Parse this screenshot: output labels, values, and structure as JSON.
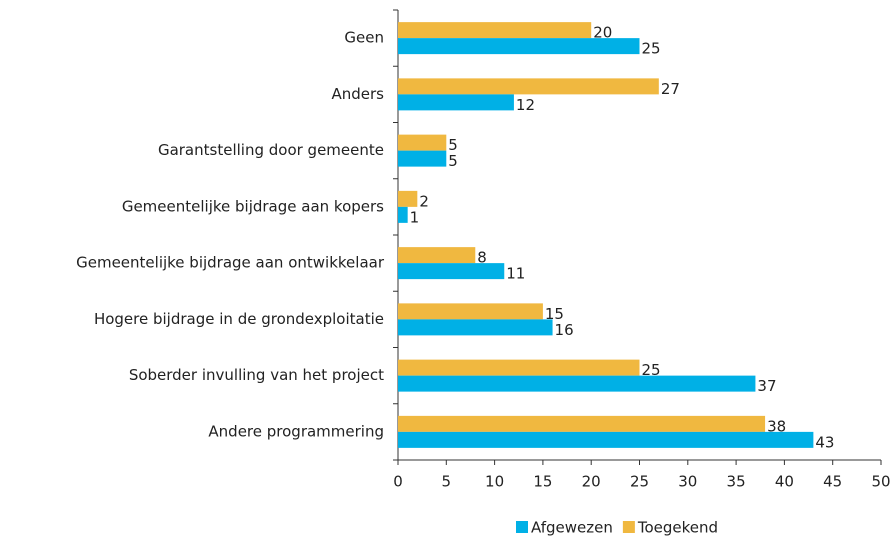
{
  "chart_data": {
    "type": "hbar",
    "categories": [
      "Geen",
      "Anders",
      "Garantstelling door gemeente",
      "Gemeentelijke bijdrage aan kopers",
      "Gemeentelijke bijdrage aan ontwikkelaar",
      "Hogere bijdrage in de grondexploitatie",
      "Soberder invulling van het project",
      "Andere programmering"
    ],
    "series": [
      {
        "name": "Afgewezen",
        "color": "#00b0e6",
        "values": [
          25,
          12,
          5,
          1,
          11,
          16,
          37,
          43
        ]
      },
      {
        "name": "Toegekend",
        "color": "#f0b840",
        "values": [
          20,
          27,
          5,
          2,
          8,
          15,
          25,
          38
        ]
      }
    ],
    "xlim": [
      0,
      50
    ],
    "xticks": [
      0,
      5,
      10,
      15,
      20,
      25,
      30,
      35,
      40,
      45,
      50
    ],
    "legend": "bottom"
  }
}
